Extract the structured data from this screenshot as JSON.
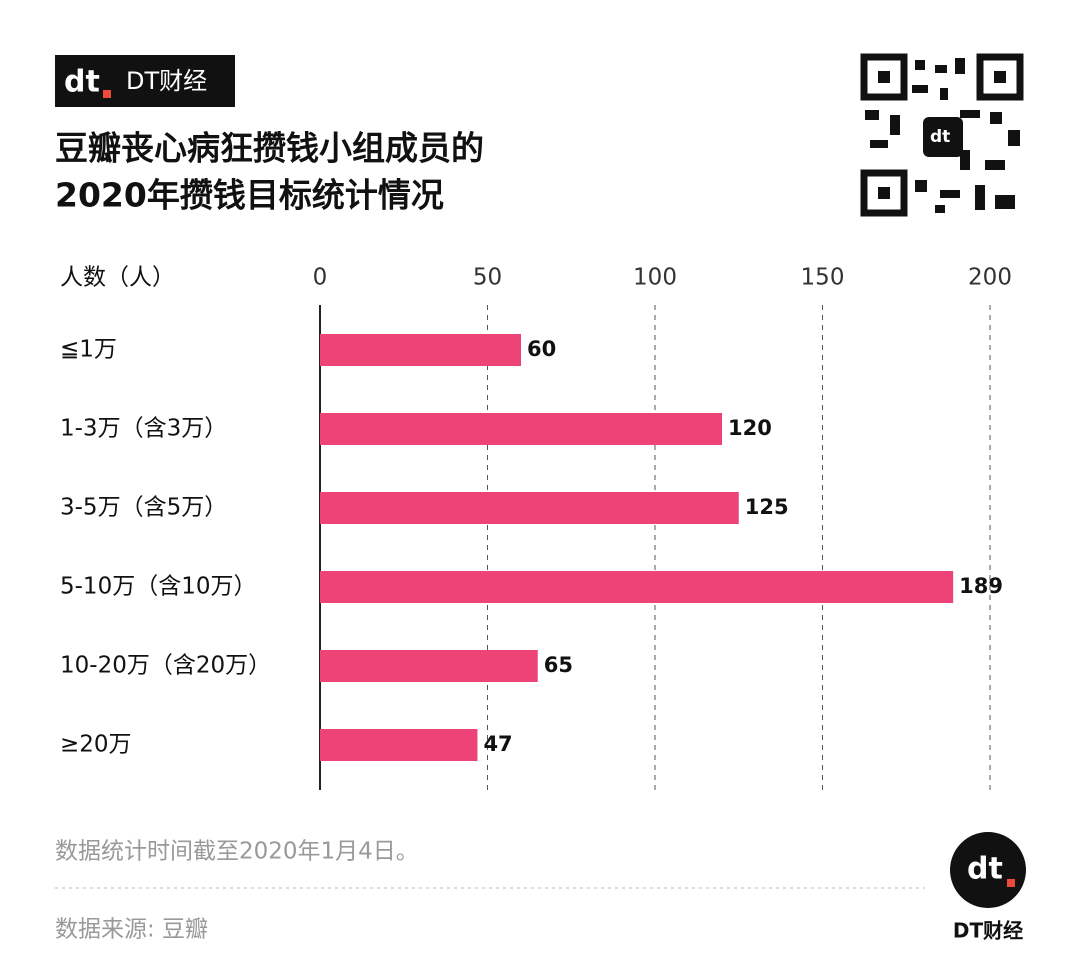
{
  "header": {
    "brand": "DT财经",
    "title_lines": [
      "豆瓣丧心病狂攒钱小组成员的",
      "2020年攒钱目标统计情况"
    ]
  },
  "chart_data": {
    "type": "bar",
    "orientation": "horizontal",
    "value_axis_label": "人数（人）",
    "categories": [
      "≦1万",
      "1-3万（含3万）",
      "3-5万（含5万）",
      "5-10万（含10万）",
      "10-20万（含20万）",
      "≥20万"
    ],
    "values": [
      60,
      120,
      125,
      189,
      65,
      47
    ],
    "color": "#ee4377",
    "xlim": [
      0,
      200
    ],
    "xticks": [
      0,
      50,
      100,
      150,
      200
    ],
    "grid": true
  },
  "footer": {
    "notes": [
      "数据统计时间截至2020年1月4日。",
      "数据来源: 豆瓣"
    ],
    "logo_text": "DT财经"
  }
}
